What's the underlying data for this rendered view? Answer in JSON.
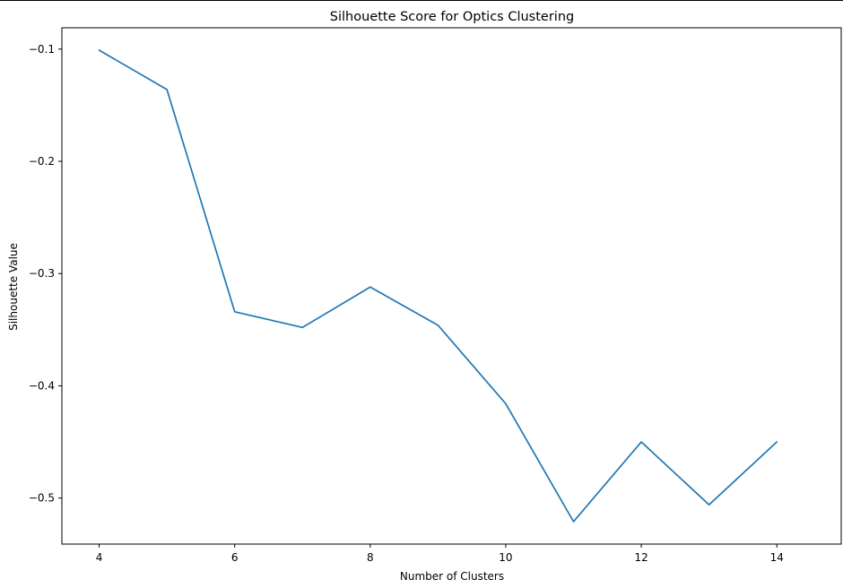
{
  "chart_data": {
    "type": "line",
    "title": "Silhouette Score for Optics Clustering",
    "xlabel": "Number of Clusters",
    "ylabel": "Silhouette Value",
    "xlim": [
      3.45,
      14.95
    ],
    "ylim": [
      -0.541,
      -0.081
    ],
    "xticks": [
      4,
      6,
      8,
      10,
      12,
      14
    ],
    "xtick_labels": [
      "4",
      "6",
      "8",
      "10",
      "12",
      "14"
    ],
    "yticks": [
      -0.1,
      -0.2,
      -0.3,
      -0.4,
      -0.5
    ],
    "ytick_labels": [
      "−0.1",
      "−0.2",
      "−0.3",
      "−0.4",
      "−0.5"
    ],
    "grid": false,
    "series": [
      {
        "name": "silhouette",
        "color": "#1f77b4",
        "x": [
          4,
          5,
          6,
          7,
          8,
          9,
          10,
          11,
          12,
          13,
          14
        ],
        "y": [
          -0.101,
          -0.136,
          -0.334,
          -0.348,
          -0.312,
          -0.346,
          -0.416,
          -0.521,
          -0.45,
          -0.506,
          -0.45
        ]
      }
    ]
  }
}
